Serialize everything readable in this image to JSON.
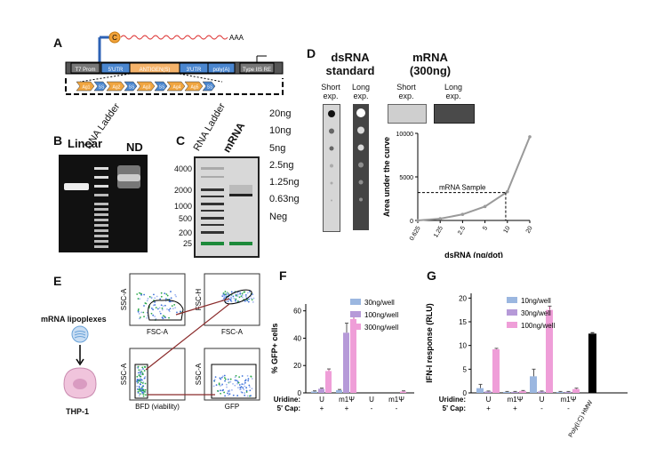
{
  "panels": {
    "A": {
      "label": "A",
      "construct": {
        "t7": "T7 Prom",
        "utr5": "5'UTR",
        "antigen": "ANTIGEN(S)",
        "utr3": "3'UTR",
        "polyA": "poly(A)",
        "type2s": "Type IIS RE",
        "cap": "C",
        "aaa": "AAA",
        "segments": [
          "Ag1",
          "SS",
          "Ag2",
          "SS",
          "Ag3",
          "SS",
          "Ag4",
          "Ag5",
          "SS"
        ]
      }
    },
    "B": {
      "label": "B",
      "lanes": [
        "Linear",
        "DNA Ladder",
        "ND"
      ]
    },
    "C": {
      "label": "C",
      "lanes": [
        "RNA Ladder",
        "mRNA"
      ],
      "sizes": [
        "4000",
        "2000",
        "1000",
        "500",
        "200",
        "25"
      ]
    },
    "D": {
      "label": "D",
      "ds_title_1": "dsRNA",
      "ds_title_2": "standard",
      "m_title_1": "mRNA",
      "m_title_2": "(300ng)",
      "short_1": "Short",
      "short_2": "exp.",
      "long_1": "Long",
      "long_2": "exp.",
      "amounts": [
        "20ng",
        "10ng",
        "5ng",
        "2.5ng",
        "1.25ng",
        "0.63ng",
        "Neg"
      ],
      "annotation": "mRNA Sample"
    },
    "E": {
      "label": "E",
      "lipoplex": "mRNA lipoplexes",
      "cell": "THP-1",
      "plots": [
        {
          "y": "SSC-A",
          "x": "FSC-A"
        },
        {
          "y": "FSC-H",
          "x": "FSC-A"
        },
        {
          "y": "SSC-A",
          "x": "BFD (viability)"
        },
        {
          "y": "SSC-A",
          "x": "GFP"
        }
      ]
    },
    "F": {
      "label": "F",
      "uridine_lbl": "Uridine:",
      "cap_lbl": "5' Cap:",
      "uridine": [
        "U",
        "m1Ψ",
        "U",
        "m1Ψ"
      ],
      "cap": [
        "+",
        "+",
        "-",
        "-"
      ]
    },
    "G": {
      "label": "G",
      "uridine_lbl": "Uridine:",
      "cap_lbl": "5' Cap:",
      "uridine": [
        "U",
        "m1Ψ",
        "U",
        "m1Ψ"
      ],
      "cap": [
        "+",
        "+",
        "-",
        "-"
      ],
      "extra": "Poly(I:C) HMW"
    }
  },
  "colors": {
    "blue": "#9bb7e0",
    "purple": "#b69ad8",
    "pink": "#ef9ed8",
    "curve": "#9a9a9a"
  },
  "chart_data": [
    {
      "id": "D",
      "type": "line",
      "xlabel": "dsRNA  (ng/dot)",
      "ylabel": "Area under the curve",
      "x": [
        0.625,
        1.25,
        2.5,
        5,
        10,
        20
      ],
      "xtick_labels": [
        "0.625",
        "1.25",
        "2.5",
        "5",
        "10",
        "20"
      ],
      "xscale": "log",
      "y": [
        0,
        200,
        700,
        1600,
        3300,
        9600
      ],
      "yticks": [
        0,
        5000,
        10000
      ],
      "ylim": [
        0,
        10000
      ],
      "reference_point": {
        "x": 9.5,
        "y": 3200
      }
    },
    {
      "id": "F",
      "type": "bar",
      "ylabel": "% GFP+ cells",
      "categories": [
        "U +",
        "m1Ψ +",
        "U -",
        "m1Ψ -"
      ],
      "series": [
        {
          "name": "30ng/well",
          "values": [
            1,
            2,
            0,
            0
          ],
          "errors": [
            0.5,
            0.5,
            0,
            0
          ]
        },
        {
          "name": "100ng/well",
          "values": [
            3,
            44,
            0,
            0
          ],
          "errors": [
            0.5,
            7,
            0,
            0
          ]
        },
        {
          "name": "300ng/well",
          "values": [
            16,
            54,
            0,
            1
          ],
          "errors": [
            1.5,
            5,
            0,
            0.5
          ]
        }
      ],
      "yticks": [
        0,
        20,
        40,
        60
      ],
      "ylim": [
        0,
        65
      ]
    },
    {
      "id": "G",
      "type": "bar",
      "ylabel": "IFN-I response (RLU)",
      "categories": [
        "U +",
        "m1Ψ +",
        "U -",
        "m1Ψ -"
      ],
      "series": [
        {
          "name": "10ng/well",
          "values": [
            1,
            0.2,
            3.5,
            0.2
          ],
          "errors": [
            0.8,
            0.1,
            1.5,
            0.1
          ]
        },
        {
          "name": "30ng/well",
          "values": [
            0.3,
            0.2,
            0.3,
            0.2
          ],
          "errors": [
            0.1,
            0.1,
            0.1,
            0.1
          ]
        },
        {
          "name": "100ng/well",
          "values": [
            9.2,
            0.4,
            17.5,
            0.8
          ],
          "errors": [
            0.2,
            0.1,
            0.8,
            0.2
          ]
        }
      ],
      "extra_bar": {
        "label": "Poly(I:C) HMW",
        "value": 12.5,
        "error": 0.2
      },
      "yticks": [
        0,
        5,
        10,
        15,
        20
      ],
      "ylim": [
        0,
        21
      ]
    }
  ]
}
